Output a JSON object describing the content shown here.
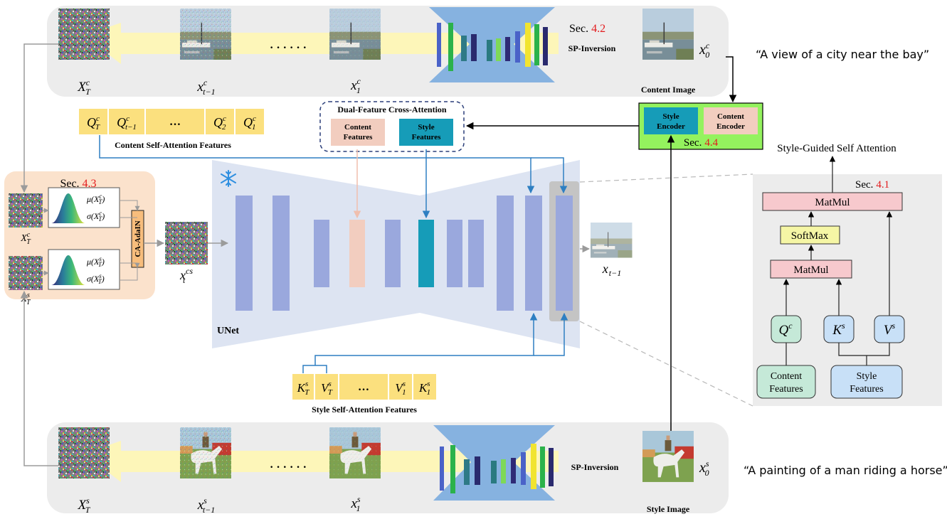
{
  "content_branch": {
    "noise_label": "X_T^c",
    "step_label": "x_{t-1}^c",
    "first_label": "x_1^c",
    "image_label": "Content Image",
    "x0_label": "x_0^c",
    "dots": "· · · · · ·",
    "inversion_label": "SP-Inversion",
    "section_prefix": "Sec.",
    "section_num": "4.2",
    "prompt": "“A view of a city near the bay”"
  },
  "style_branch": {
    "noise_label": "X_T^s",
    "step_label": "x_{t-1}^s",
    "first_label": "x_1^s",
    "image_label": "Style Image",
    "x0_label": "x_0^s",
    "dots": "· · · · · ·",
    "inversion_label": "SP-Inversion",
    "prompt": "“A painting of a man riding a horse”"
  },
  "content_queries": {
    "caption": "Content Self-Attention Features",
    "cells": [
      "Q_T^c",
      "Q_{t-1}^c",
      "…",
      "Q_2^c",
      "Q_1^c"
    ]
  },
  "style_kv": {
    "caption": "Style Self-Attention Features",
    "cells": [
      "K_T^s",
      "V_T^s",
      "…",
      "V_1^s",
      "K_1^s"
    ]
  },
  "dual_cross_attention": {
    "title": "Dual-Feature Cross-Attention",
    "content_line1": "Content",
    "content_line2": "Features",
    "style_line1": "Style",
    "style_line2": "Features"
  },
  "encoders": {
    "style_line1": "Style",
    "style_line2": "Encoder",
    "content_line1": "Content",
    "content_line2": "Encoder",
    "section_prefix": "Sec.",
    "section_num": "4.4"
  },
  "adain": {
    "section_prefix": "Sec.",
    "section_num": "4.3",
    "xc_label": "X_T^c",
    "xs_label": "X_T^s",
    "mu_c": "μ(X_T^c)",
    "sigma_c": "σ(X_T^c)",
    "mu_s": "μ(X_T^s)",
    "sigma_s": "σ(X_T^s)",
    "module_label": "CA-AdaIN",
    "output_label": "x_t^{cs}"
  },
  "unet": {
    "label": "UNet",
    "output_label": "x_{t-1}",
    "frozen_icon": "snowflake-icon"
  },
  "attention_detail": {
    "heading": "Style-Guided Self Attention",
    "section_prefix": "Sec.",
    "section_num": "4.1",
    "matmul_top": "MatMul",
    "softmax": "SoftMax",
    "matmul_mid": "MatMul",
    "q_label": "Q^c",
    "k_label": "K^s",
    "v_label": "V^s",
    "content_line1": "Content",
    "content_line2": "Features",
    "style_line1": "Style",
    "style_line2": "Features"
  },
  "colors": {
    "panel_gray": "#ececec",
    "adain_bg": "#fbe2cc",
    "encoder_green": "#94f25e",
    "unet_bg": "#dde4f2",
    "unet_block": "#9aa8dd",
    "teal": "#169cb8",
    "pink": "#f2cdbf",
    "yellow_cell": "#fbe07e",
    "arrow_yellow": "#fdf6b9",
    "matmul_pink": "#f7c9cd",
    "softmax_yellow": "#f5f6a5",
    "q_green": "#c5e9d8",
    "kv_blue": "#c8e0f7",
    "link_blue": "#2e7fc2"
  }
}
